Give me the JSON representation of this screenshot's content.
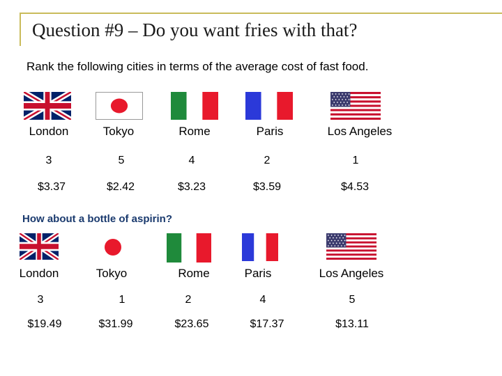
{
  "title": "Question #9 – Do you want fries with that?",
  "subtitle": "Rank the following cities in terms of the average cost of fast food.",
  "section2_title": "How about a bottle of aspirin?",
  "cities": [
    {
      "name": "London",
      "flag": "uk-flag-icon"
    },
    {
      "name": "Tokyo",
      "flag": "japan-flag-icon"
    },
    {
      "name": "Rome",
      "flag": "italy-flag-icon"
    },
    {
      "name": "Paris",
      "flag": "france-flag-icon"
    },
    {
      "name": "Los Angeles",
      "flag": "usa-flag-icon"
    }
  ],
  "fast_food": {
    "ranks": [
      "3",
      "5",
      "4",
      "2",
      "1"
    ],
    "prices": [
      "$3.37",
      "$2.42",
      "$3.23",
      "$3.59",
      "$4.53"
    ]
  },
  "aspirin": {
    "ranks": [
      "3",
      "1",
      "2",
      "4",
      "5"
    ],
    "prices": [
      "$19.49",
      "$31.99",
      "$23.65",
      "$17.37",
      "$13.11"
    ]
  },
  "colors": {
    "frame": "#c9bb5a",
    "section2": "#1a3a6e"
  }
}
